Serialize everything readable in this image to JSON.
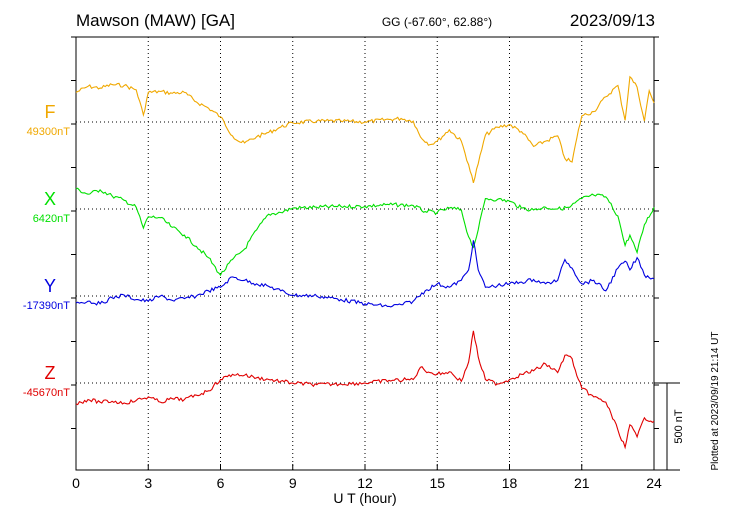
{
  "header": {
    "station": "Mawson (MAW)  [GA]",
    "coords": "GG (-67.60°,  62.88°)",
    "date": "2023/09/13"
  },
  "footer_note": "Plotted at 2023/09/19 21:14 UT",
  "scale_label": "500 nT",
  "chart_data": {
    "type": "line",
    "title": "Mawson (MAW)  [GA]",
    "xlabel": "U T (hour)",
    "xlim": [
      0,
      24
    ],
    "xticks": [
      0,
      3,
      6,
      9,
      12,
      15,
      18,
      21,
      24
    ],
    "grid": true,
    "scale_nT": 500,
    "series": [
      {
        "name": "F",
        "baseline_label": "49300nT",
        "baseline_nT": 49300,
        "color": "#f0a800",
        "points": [
          [
            0,
            -170
          ],
          [
            0.5,
            -205
          ],
          [
            1,
            -195
          ],
          [
            1.5,
            -215
          ],
          [
            2,
            -210
          ],
          [
            2.5,
            -185
          ],
          [
            2.8,
            -40
          ],
          [
            3,
            -170
          ],
          [
            3.5,
            -175
          ],
          [
            4,
            -165
          ],
          [
            4.5,
            -170
          ],
          [
            5,
            -115
          ],
          [
            5.5,
            -80
          ],
          [
            6,
            -30
          ],
          [
            6.5,
            80
          ],
          [
            6.8,
            115
          ],
          [
            7,
            120
          ],
          [
            7.5,
            85
          ],
          [
            8,
            60
          ],
          [
            8.5,
            30
          ],
          [
            9,
            5
          ],
          [
            10,
            -5
          ],
          [
            11,
            -5
          ],
          [
            12,
            0
          ],
          [
            13,
            -15
          ],
          [
            13.5,
            -20
          ],
          [
            14,
            -5
          ],
          [
            14.3,
            85
          ],
          [
            14.7,
            130
          ],
          [
            15,
            110
          ],
          [
            15.5,
            45
          ],
          [
            16,
            110
          ],
          [
            16.3,
            245
          ],
          [
            16.5,
            350
          ],
          [
            16.7,
            240
          ],
          [
            17,
            75
          ],
          [
            17.5,
            30
          ],
          [
            18,
            15
          ],
          [
            18.5,
            55
          ],
          [
            19,
            140
          ],
          [
            19.5,
            110
          ],
          [
            20,
            80
          ],
          [
            20.3,
            210
          ],
          [
            20.6,
            230
          ],
          [
            20.8,
            90
          ],
          [
            21,
            -35
          ],
          [
            21.5,
            -60
          ],
          [
            22,
            -145
          ],
          [
            22.5,
            -210
          ],
          [
            22.8,
            -10
          ],
          [
            23,
            -260
          ],
          [
            23.3,
            -200
          ],
          [
            23.6,
            -5
          ],
          [
            23.8,
            -180
          ],
          [
            24,
            -110
          ]
        ]
      },
      {
        "name": "X",
        "baseline_label": "6420nT",
        "baseline_nT": 6420,
        "color": "#00e000",
        "points": [
          [
            0,
            -115
          ],
          [
            0.5,
            -85
          ],
          [
            1,
            -110
          ],
          [
            1.5,
            -75
          ],
          [
            2,
            -50
          ],
          [
            2.5,
            -10
          ],
          [
            2.8,
            110
          ],
          [
            3,
            45
          ],
          [
            3.5,
            50
          ],
          [
            4,
            105
          ],
          [
            4.5,
            150
          ],
          [
            5,
            215
          ],
          [
            5.5,
            280
          ],
          [
            6,
            380
          ],
          [
            6.5,
            290
          ],
          [
            7,
            230
          ],
          [
            7.5,
            120
          ],
          [
            8,
            30
          ],
          [
            8.5,
            20
          ],
          [
            9,
            -5
          ],
          [
            10,
            -10
          ],
          [
            11,
            -15
          ],
          [
            12,
            -15
          ],
          [
            13,
            -25
          ],
          [
            14,
            -20
          ],
          [
            14.5,
            15
          ],
          [
            15,
            20
          ],
          [
            15.5,
            -5
          ],
          [
            16,
            5
          ],
          [
            16.3,
            160
          ],
          [
            16.5,
            220
          ],
          [
            16.7,
            120
          ],
          [
            17,
            -60
          ],
          [
            17.5,
            -55
          ],
          [
            18,
            -45
          ],
          [
            18.5,
            -5
          ],
          [
            19,
            5
          ],
          [
            19.5,
            -10
          ],
          [
            20,
            0
          ],
          [
            20.5,
            -10
          ],
          [
            21,
            -60
          ],
          [
            21.5,
            -80
          ],
          [
            22,
            -70
          ],
          [
            22.5,
            40
          ],
          [
            22.8,
            210
          ],
          [
            23,
            150
          ],
          [
            23.3,
            250
          ],
          [
            23.6,
            90
          ],
          [
            24,
            -10
          ]
        ]
      },
      {
        "name": "Y",
        "baseline_label": "-17390nT",
        "baseline_nT": -17390,
        "color": "#0000e0",
        "points": [
          [
            0,
            40
          ],
          [
            0.5,
            30
          ],
          [
            1,
            45
          ],
          [
            1.5,
            10
          ],
          [
            2,
            -5
          ],
          [
            2.5,
            20
          ],
          [
            3,
            30
          ],
          [
            3.5,
            0
          ],
          [
            4,
            25
          ],
          [
            4.5,
            15
          ],
          [
            5,
            0
          ],
          [
            5.5,
            -30
          ],
          [
            6,
            -50
          ],
          [
            6.5,
            -110
          ],
          [
            7,
            -90
          ],
          [
            7.5,
            -70
          ],
          [
            8,
            -55
          ],
          [
            8.5,
            -30
          ],
          [
            9,
            -5
          ],
          [
            10,
            0
          ],
          [
            11,
            20
          ],
          [
            12,
            45
          ],
          [
            13,
            60
          ],
          [
            13.5,
            50
          ],
          [
            14,
            30
          ],
          [
            14.5,
            -30
          ],
          [
            15,
            -70
          ],
          [
            15.5,
            -50
          ],
          [
            16,
            -90
          ],
          [
            16.3,
            -150
          ],
          [
            16.5,
            -320
          ],
          [
            16.7,
            -150
          ],
          [
            17,
            -50
          ],
          [
            17.5,
            -60
          ],
          [
            18,
            -70
          ],
          [
            18.5,
            -80
          ],
          [
            19,
            -95
          ],
          [
            19.5,
            -70
          ],
          [
            20,
            -90
          ],
          [
            20.3,
            -210
          ],
          [
            20.6,
            -160
          ],
          [
            21,
            -70
          ],
          [
            21.5,
            -90
          ],
          [
            22,
            -30
          ],
          [
            22.5,
            -160
          ],
          [
            22.8,
            -200
          ],
          [
            23,
            -150
          ],
          [
            23.3,
            -220
          ],
          [
            23.6,
            -120
          ],
          [
            24,
            -100
          ]
        ]
      },
      {
        "name": "Z",
        "baseline_label": "-45670nT",
        "baseline_nT": -45670,
        "color": "#e00000",
        "points": [
          [
            0,
            120
          ],
          [
            0.5,
            95
          ],
          [
            1,
            110
          ],
          [
            1.5,
            105
          ],
          [
            2,
            115
          ],
          [
            2.5,
            100
          ],
          [
            3,
            80
          ],
          [
            3.5,
            110
          ],
          [
            4,
            90
          ],
          [
            4.5,
            95
          ],
          [
            5,
            70
          ],
          [
            5.5,
            45
          ],
          [
            6,
            -20
          ],
          [
            6.5,
            -50
          ],
          [
            7,
            -45
          ],
          [
            7.5,
            -30
          ],
          [
            8,
            -20
          ],
          [
            8.5,
            -10
          ],
          [
            9,
            0
          ],
          [
            10,
            10
          ],
          [
            11,
            5
          ],
          [
            12,
            0
          ],
          [
            13,
            -15
          ],
          [
            14,
            -20
          ],
          [
            14.3,
            -90
          ],
          [
            14.7,
            -60
          ],
          [
            15,
            -50
          ],
          [
            15.5,
            -65
          ],
          [
            16,
            -10
          ],
          [
            16.3,
            -120
          ],
          [
            16.5,
            -300
          ],
          [
            16.7,
            -150
          ],
          [
            17,
            -20
          ],
          [
            17.5,
            5
          ],
          [
            18,
            -20
          ],
          [
            18.5,
            -50
          ],
          [
            19,
            -70
          ],
          [
            19.5,
            -110
          ],
          [
            20,
            -60
          ],
          [
            20.3,
            -160
          ],
          [
            20.6,
            -140
          ],
          [
            20.8,
            -40
          ],
          [
            21,
            30
          ],
          [
            21.5,
            80
          ],
          [
            22,
            110
          ],
          [
            22.5,
            270
          ],
          [
            22.8,
            370
          ],
          [
            23,
            240
          ],
          [
            23.3,
            310
          ],
          [
            23.6,
            200
          ],
          [
            24,
            220
          ]
        ]
      }
    ]
  }
}
